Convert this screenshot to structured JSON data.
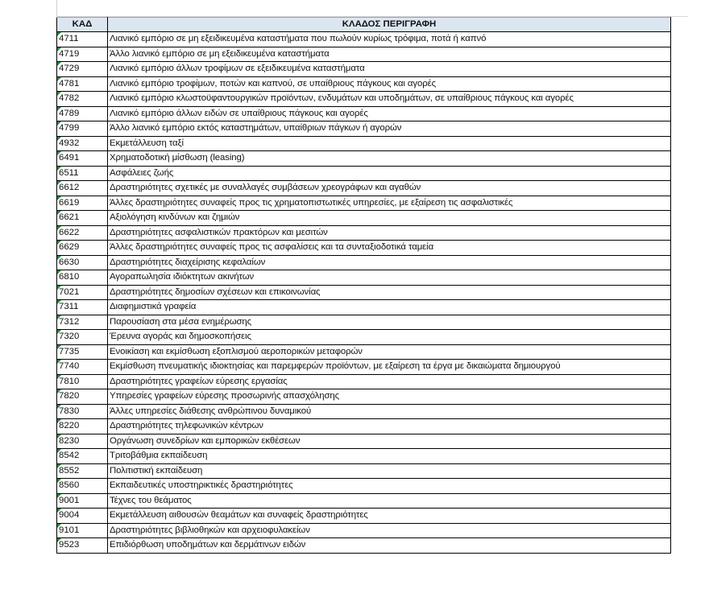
{
  "table": {
    "headers": [
      "ΚΑΔ",
      "ΚΛΑΔΟΣ ΠΕΡΙΓΡΑΦΗ"
    ],
    "rows": [
      {
        "code": "4711",
        "desc": "Λιανικό εμπόριο σε μη εξειδικευμένα καταστήματα που πωλούν κυρίως τρόφιμα, ποτά ή καπνό"
      },
      {
        "code": "4719",
        "desc": "Άλλο λιανικό εμπόριο σε μη εξειδικευμένα καταστήματα"
      },
      {
        "code": "4729",
        "desc": "Λιανικό εμπόριο άλλων τροφίμων σε εξειδικευμένα καταστήματα"
      },
      {
        "code": "4781",
        "desc": "Λιανικό εμπόριο τροφίμων, ποτών και καπνού, σε υπαίθριους πάγκους και αγορές"
      },
      {
        "code": "4782",
        "desc": "Λιανικό εμπόριο κλωστοϋφαντουργικών προϊόντων, ενδυμάτων και υποδημάτων, σε υπαίθριους πάγκους και αγορές"
      },
      {
        "code": "4789",
        "desc": "Λιανικό εμπόριο άλλων ειδών σε υπαίθριους πάγκους και αγορές"
      },
      {
        "code": "4799",
        "desc": "Άλλο λιανικό εμπόριο εκτός καταστημάτων, υπαίθριων πάγκων ή αγορών"
      },
      {
        "code": "4932",
        "desc": "Εκμετάλλευση ταξί"
      },
      {
        "code": "6491",
        "desc": "Χρηματοδοτική μίσθωση (leasing)"
      },
      {
        "code": "6511",
        "desc": "Ασφάλειες ζωής"
      },
      {
        "code": "6612",
        "desc": "Δραστηριότητες σχετικές με συναλλαγές συμβάσεων χρεογράφων και αγαθών"
      },
      {
        "code": "6619",
        "desc": "Άλλες δραστηριότητες συναφείς προς τις χρηματοπιστωτικές υπηρεσίες, με εξαίρεση τις ασφαλιστικές"
      },
      {
        "code": "6621",
        "desc": "Αξιολόγηση κινδύνων και ζημιών"
      },
      {
        "code": "6622",
        "desc": "Δραστηριότητες ασφαλιστικών πρακτόρων και μεσιτών"
      },
      {
        "code": "6629",
        "desc": "Άλλες δραστηριότητες συναφείς προς τις ασφαλίσεις και τα συνταξιοδοτικά ταμεία"
      },
      {
        "code": "6630",
        "desc": "Δραστηριότητες διαχείρισης κεφαλαίων"
      },
      {
        "code": "6810",
        "desc": "Αγοραπωλησία ιδιόκτητων ακινήτων"
      },
      {
        "code": "7021",
        "desc": "Δραστηριότητες δημοσίων σχέσεων και επικοινωνίας"
      },
      {
        "code": "7311",
        "desc": "Διαφημιστικά γραφεία"
      },
      {
        "code": "7312",
        "desc": "Παρουσίαση στα μέσα ενημέρωσης"
      },
      {
        "code": "7320",
        "desc": "Έρευνα αγοράς και δημοσκοπήσεις"
      },
      {
        "code": "7735",
        "desc": "Ενοικίαση και εκμίσθωση εξοπλισμού αεροπορικών μεταφορών"
      },
      {
        "code": "7740",
        "desc": "Εκμίσθωση πνευματικής ιδιοκτησίας και παρεμφερών προϊόντων, με εξαίρεση τα έργα με δικαιώματα δημιουργού"
      },
      {
        "code": "7810",
        "desc": "Δραστηριότητες γραφείων εύρεσης εργασίας"
      },
      {
        "code": "7820",
        "desc": "Υπηρεσίες γραφείων εύρεσης προσωρινής απασχόλησης"
      },
      {
        "code": "7830",
        "desc": "Άλλες υπηρεσίες διάθεσης ανθρώπινου δυναμικού"
      },
      {
        "code": "8220",
        "desc": "Δραστηριότητες τηλεφωνικών κέντρων"
      },
      {
        "code": "8230",
        "desc": "Οργάνωση συνεδρίων και εμπορικών εκθέσεων"
      },
      {
        "code": "8542",
        "desc": "Τριτοβάθμια εκπαίδευση"
      },
      {
        "code": "8552",
        "desc": "Πολιτιστική εκπαίδευση"
      },
      {
        "code": "8560",
        "desc": "Εκπαιδευτικές υποστηρικτικές δραστηριότητες"
      },
      {
        "code": "9001",
        "desc": "Τέχνες του θεάματος"
      },
      {
        "code": "9004",
        "desc": "Εκμετάλλευση αιθουσών θεαμάτων και συναφείς δραστηριότητες"
      },
      {
        "code": "9101",
        "desc": "Δραστηριότητες βιβλιοθηκών και αρχειοφυλακείων"
      },
      {
        "code": "9523",
        "desc": "Επιδιόρθωση υποδημάτων και δερμάτινων ειδών"
      }
    ]
  }
}
